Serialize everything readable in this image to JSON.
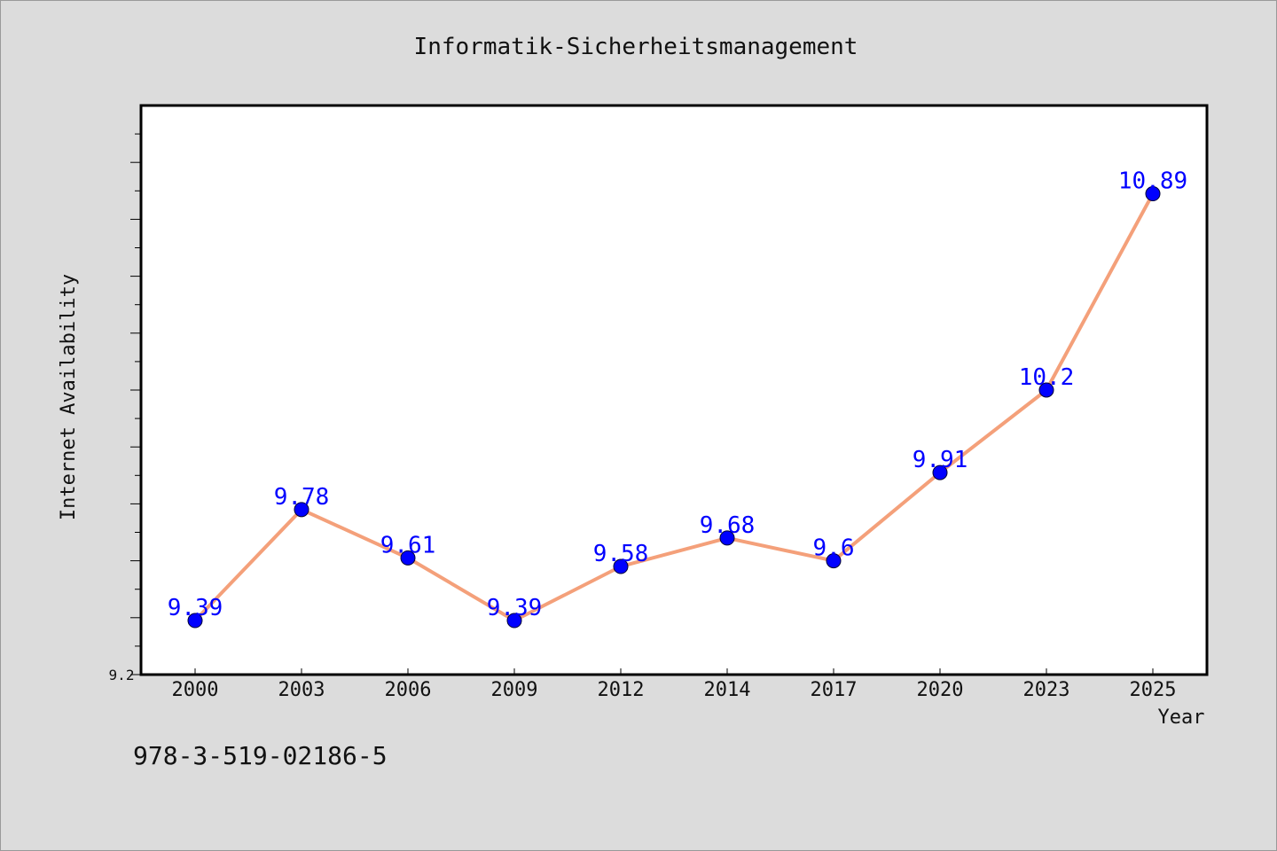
{
  "chart_data": {
    "type": "line",
    "title": "Informatik-Sicherheitsmanagement",
    "xlabel": "Year",
    "ylabel": "Internet Availability",
    "categories": [
      "2000",
      "2003",
      "2006",
      "2009",
      "2012",
      "2014",
      "2017",
      "2020",
      "2023",
      "2025"
    ],
    "series": [
      {
        "values": [
          9.39,
          9.78,
          9.61,
          9.39,
          9.58,
          9.68,
          9.6,
          9.91,
          10.2,
          10.89
        ],
        "labels": [
          "9.39",
          "9.78",
          "9.61",
          "9.39",
          "9.58",
          "9.68",
          "9.6",
          "9.91",
          "10.2",
          "10.89"
        ]
      }
    ],
    "ylim": [
      9.2,
      11.2
    ],
    "yticklabel": "9.2",
    "grid": false,
    "line_color": "#f4a07a",
    "marker_color": "#0000ff",
    "label_color": "#0000ff"
  },
  "footer": {
    "isbn": "978-3-519-02186-5"
  }
}
